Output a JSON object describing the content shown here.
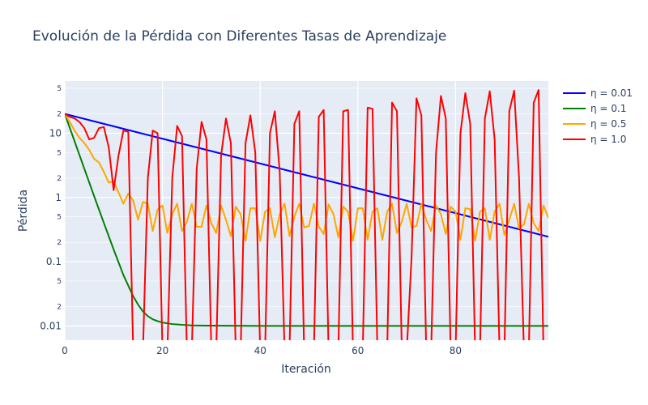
{
  "chart_data": {
    "type": "line",
    "title": "Evolución de la Pérdida con Diferentes Tasas de Aprendizaje",
    "xlabel": "Iteración",
    "ylabel": "Pérdida",
    "x_range": [
      0,
      99
    ],
    "y_range": [
      0.006,
      65
    ],
    "y_scale": "log",
    "x_ticks": [
      "0",
      "20",
      "40",
      "60",
      "80"
    ],
    "y_major_ticks": [
      "0.01",
      "0.1",
      "1",
      "10"
    ],
    "y_minor_ticks": [
      "2",
      "5",
      "2",
      "5",
      "2",
      "5",
      "2",
      "5"
    ],
    "grid": true,
    "legend_position": "top-right",
    "colors": {
      "plot_bg": "#E5ECF6",
      "grid": "#ffffff",
      "text": "#2a3f5f"
    },
    "series": [
      {
        "name": "η = 0.01",
        "color": "#0000ff",
        "x": [
          0,
          99
        ],
        "y": [
          20,
          0.245
        ]
      },
      {
        "name": "η = 0.1",
        "color": "#008000",
        "x": [
          0,
          2,
          4,
          6,
          8,
          10,
          12,
          14,
          15,
          16,
          17,
          18,
          19,
          20,
          22,
          24,
          26,
          30,
          40,
          60,
          80,
          99
        ],
        "y": [
          20,
          7.5,
          2.8,
          1.05,
          0.4,
          0.155,
          0.062,
          0.029,
          0.0215,
          0.0168,
          0.0142,
          0.0127,
          0.0119,
          0.0113,
          0.0107,
          0.0104,
          0.0102,
          0.0101,
          0.01,
          0.01,
          0.01,
          0.01
        ]
      },
      {
        "name": "η = 0.5",
        "color": "#FFA500",
        "x": [
          0,
          1,
          2,
          3,
          4,
          5,
          6,
          7,
          8,
          9,
          10,
          11,
          12,
          13,
          14,
          15,
          16,
          17,
          18,
          19,
          20,
          21,
          22,
          23,
          24,
          25,
          26,
          27,
          28,
          29,
          30,
          31,
          32,
          33,
          34,
          35,
          36,
          37,
          38,
          39,
          40,
          41,
          42,
          43,
          44,
          45,
          46,
          47,
          48,
          49,
          50,
          51,
          52,
          53,
          54,
          55,
          56,
          57,
          58,
          59,
          60,
          61,
          62,
          63,
          64,
          65,
          66,
          67,
          68,
          69,
          70,
          71,
          72,
          73,
          74,
          75,
          76,
          77,
          78,
          79,
          80,
          81,
          82,
          83,
          84,
          85,
          86,
          87,
          88,
          89,
          90,
          91,
          92,
          93,
          94,
          95,
          96,
          97,
          98,
          99
        ],
        "y": [
          20,
          15,
          11,
          8.5,
          7,
          5.5,
          4,
          3.5,
          2.5,
          1.7,
          1.8,
          1.2,
          0.8,
          1.15,
          0.9,
          0.45,
          0.85,
          0.8,
          0.3,
          0.65,
          0.75,
          0.28,
          0.55,
          0.8,
          0.3,
          0.42,
          0.8,
          0.35,
          0.35,
          0.75,
          0.4,
          0.28,
          0.75,
          0.45,
          0.25,
          0.72,
          0.55,
          0.21,
          0.68,
          0.68,
          0.21,
          0.6,
          0.68,
          0.24,
          0.55,
          0.8,
          0.25,
          0.5,
          0.8,
          0.34,
          0.36,
          0.8,
          0.35,
          0.27,
          0.78,
          0.55,
          0.24,
          0.72,
          0.6,
          0.21,
          0.68,
          0.68,
          0.22,
          0.6,
          0.68,
          0.22,
          0.6,
          0.8,
          0.28,
          0.42,
          0.8,
          0.34,
          0.36,
          0.8,
          0.45,
          0.3,
          0.75,
          0.55,
          0.27,
          0.72,
          0.6,
          0.22,
          0.68,
          0.66,
          0.21,
          0.6,
          0.68,
          0.22,
          0.6,
          0.8,
          0.26,
          0.45,
          0.8,
          0.33,
          0.38,
          0.8,
          0.4,
          0.3,
          0.75,
          0.48
        ]
      },
      {
        "name": "η = 1.0",
        "color": "#ff0000",
        "x": [
          0,
          1,
          2,
          3,
          4,
          5,
          6,
          7,
          8,
          9,
          10,
          11,
          12,
          13,
          14,
          15,
          16,
          17,
          18,
          19,
          20,
          21,
          22,
          23,
          24,
          25,
          26,
          27,
          28,
          29,
          30,
          31,
          32,
          33,
          34,
          35,
          36,
          37,
          38,
          39,
          40,
          41,
          42,
          43,
          44,
          45,
          46,
          47,
          48,
          49,
          50,
          51,
          52,
          53,
          54,
          55,
          56,
          57,
          58,
          59,
          60,
          61,
          62,
          63,
          64,
          65,
          66,
          67,
          68,
          69,
          70,
          71,
          72,
          73,
          74,
          75,
          76,
          77,
          78,
          79,
          80,
          81,
          82,
          83,
          84,
          85,
          86,
          87,
          88,
          89,
          90,
          91,
          92,
          93,
          94,
          95,
          96,
          97,
          98,
          99
        ],
        "y": [
          20,
          18,
          17,
          15,
          12,
          8,
          8.5,
          12,
          12.5,
          6,
          1.3,
          4.5,
          11,
          10.5,
          0.004,
          0.004,
          0.004,
          2,
          11,
          10,
          0.004,
          0.004,
          2,
          13,
          9,
          0.004,
          0.004,
          2.8,
          15,
          8,
          0.004,
          0.004,
          4.5,
          17,
          7,
          0.004,
          0.004,
          7,
          19,
          5,
          0.004,
          0.004,
          10,
          22,
          2.5,
          0.004,
          0.004,
          14,
          22,
          0.004,
          0.004,
          0.004,
          18,
          23,
          0.004,
          0.004,
          0.004,
          22,
          23,
          0.004,
          0.004,
          0.004,
          25,
          24,
          0.004,
          0.004,
          0.004,
          30,
          22,
          0.004,
          0.004,
          0.12,
          35,
          19,
          0.004,
          0.004,
          5,
          38,
          17,
          0.004,
          0.004,
          10,
          42,
          14,
          0.004,
          0.004,
          17,
          45,
          8,
          0.004,
          0.004,
          22,
          46,
          2,
          0.004,
          0.004,
          30,
          47,
          0.004,
          0.004
        ]
      }
    ]
  }
}
